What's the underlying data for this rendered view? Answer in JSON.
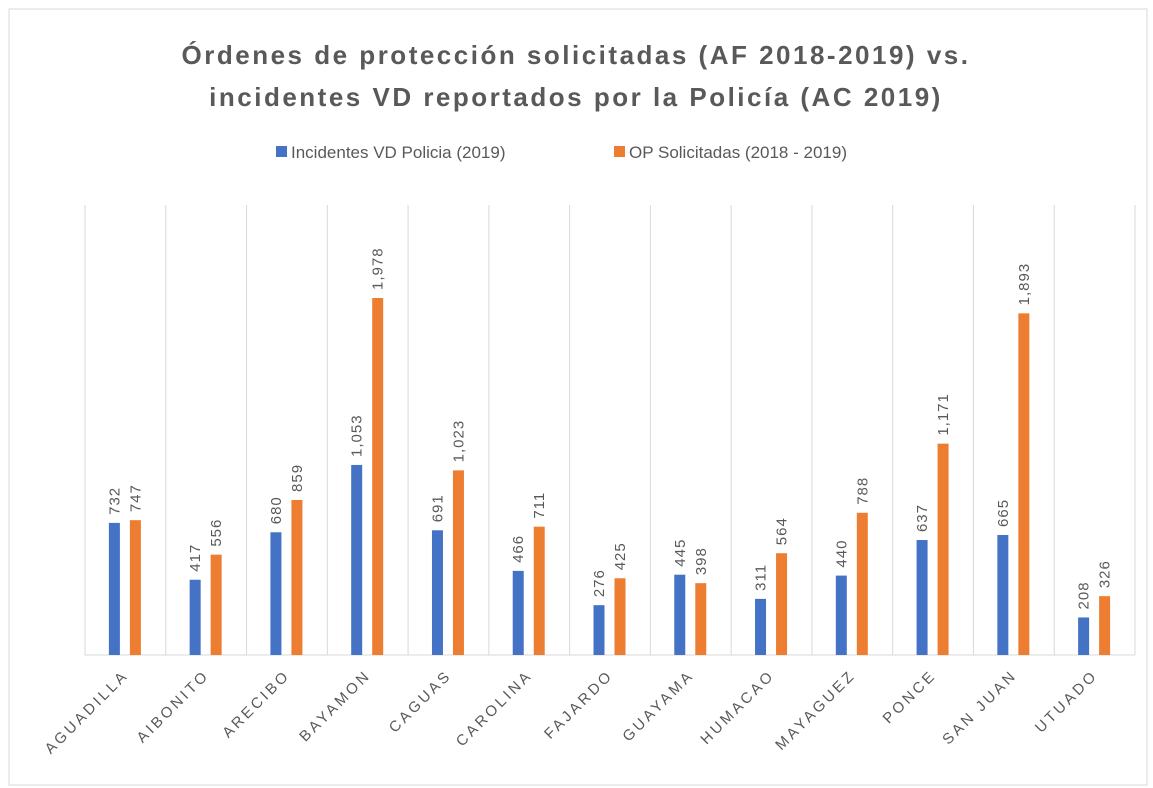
{
  "chart_data": {
    "type": "bar",
    "title": [
      "Órdenes de protección solicitadas (AF 2018-2019) vs.",
      "incidentes VD reportados por la Policía (AC 2019)"
    ],
    "categories": [
      "AGUADILLA",
      "AIBONITO",
      "ARECIBO",
      "BAYAMON",
      "CAGUAS",
      "CAROLINA",
      "FAJARDO",
      "GUAYAMA",
      "HUMACAO",
      "MAYAGUEZ",
      "PONCE",
      "SAN JUAN",
      "UTUADO"
    ],
    "series": [
      {
        "name": "Incidentes VD Policia (2019)",
        "color": "#4472c4",
        "values": [
          732,
          417,
          680,
          1053,
          691,
          466,
          276,
          445,
          311,
          440,
          637,
          665,
          208
        ],
        "value_labels": [
          "732",
          "417",
          "680",
          "1,053",
          "691",
          "466",
          "276",
          "445",
          "311",
          "440",
          "637",
          "665",
          "208"
        ]
      },
      {
        "name": "OP Solicitadas (2018 - 2019)",
        "color": "#ed7d31",
        "values": [
          747,
          556,
          859,
          1978,
          1023,
          711,
          425,
          398,
          564,
          788,
          1171,
          1893,
          326
        ],
        "value_labels": [
          "747",
          "556",
          "859",
          "1,978",
          "1,023",
          "711",
          "425",
          "398",
          "564",
          "788",
          "1,171",
          "1,893",
          "326"
        ]
      }
    ],
    "legend": "top",
    "grid": true
  }
}
